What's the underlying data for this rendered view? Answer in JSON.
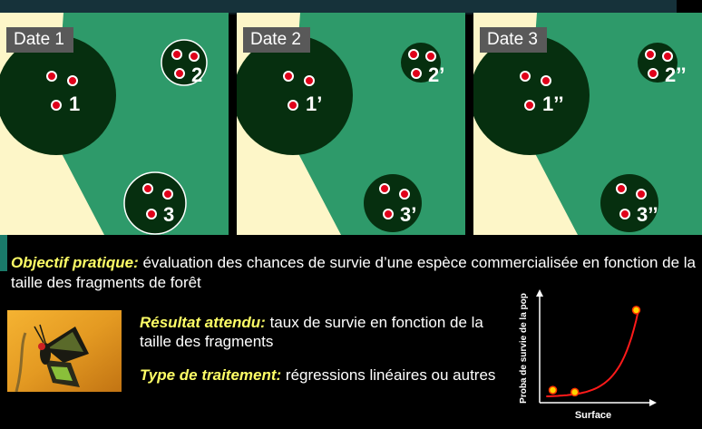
{
  "panels": [
    {
      "date": "Date 1",
      "labels": [
        "1",
        "2",
        "3"
      ]
    },
    {
      "date": "Date 2",
      "labels": [
        "1’",
        "2’",
        "3’"
      ]
    },
    {
      "date": "Date 3",
      "labels": [
        "1’’",
        "2’’",
        "3’’"
      ]
    }
  ],
  "colors": {
    "cream": "#fdf6c8",
    "forest_light": "#2e9a6a",
    "forest_dark": "#062f0f",
    "point_red": "#e0001a",
    "point_yellow": "#ffd400",
    "accent_yellow": "#ffff66"
  },
  "objectif": {
    "label": "Objectif pratique:",
    "text": " évaluation des chances de survie d’une espèce commercialisée en fonction de la taille des fragments de forêt"
  },
  "resultat": {
    "label": "Résultat attendu:",
    "text": " taux de survie en fonction de la taille des fragments"
  },
  "traitement": {
    "label": "Type de traitement:",
    "text": " régressions linéaires ou autres"
  },
  "butterfly": {
    "icon": "butterfly-photo-icon"
  },
  "chart_data": {
    "type": "scatter",
    "xlabel": "Surface",
    "ylabel": "Proba de survie de la pop",
    "points": [
      [
        0.12,
        0.12
      ],
      [
        0.32,
        0.1
      ],
      [
        0.88,
        0.88
      ]
    ],
    "curve": "exponential",
    "xlim": [
      0,
      1
    ],
    "ylim": [
      0,
      1
    ]
  }
}
